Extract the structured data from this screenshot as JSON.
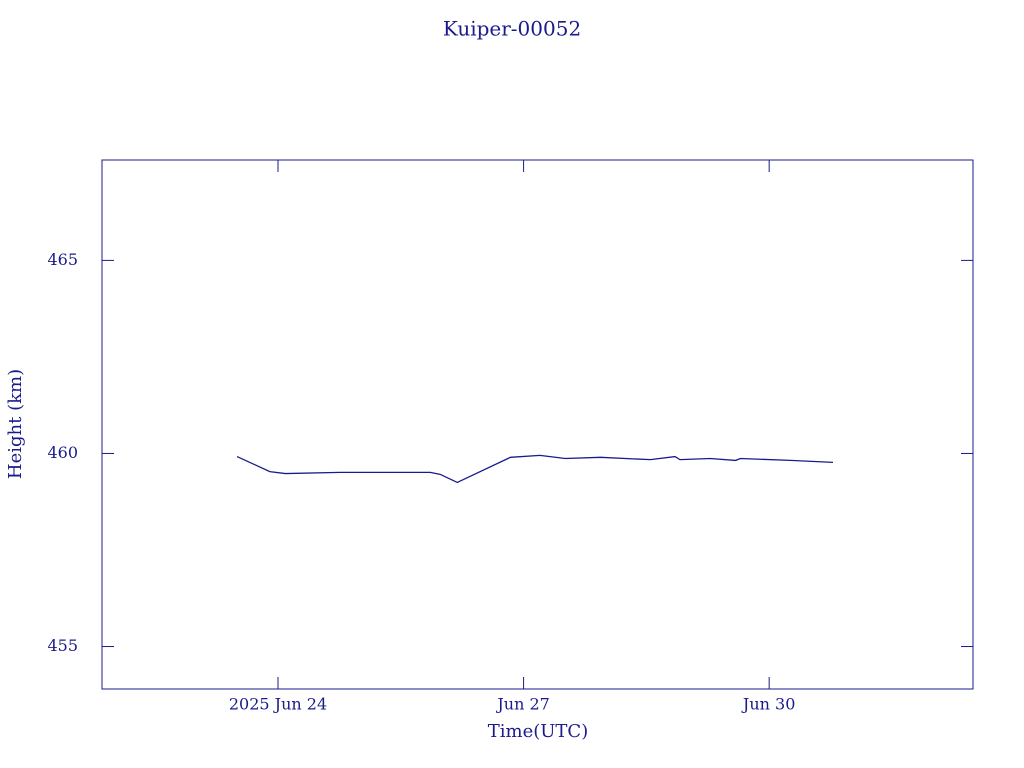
{
  "chart_data": {
    "type": "line",
    "title": "Kuiper-00052",
    "x_label": "Time(UTC)",
    "y_label": "Height (km)",
    "x": [
      23.5,
      23.9,
      24.09,
      24.76,
      25.37,
      25.86,
      25.98,
      26.19,
      26.84,
      27.2,
      27.51,
      27.94,
      28.55,
      28.85,
      28.91,
      29.28,
      29.59,
      29.65,
      30.26,
      30.78
    ],
    "series": [
      {
        "name": "Height",
        "color": "#1a1a8c",
        "values": [
          459.92,
          459.53,
          459.48,
          459.51,
          459.51,
          459.51,
          459.46,
          459.25,
          459.9,
          459.95,
          459.87,
          459.9,
          459.84,
          459.92,
          459.84,
          459.87,
          459.82,
          459.87,
          459.82,
          459.77
        ]
      }
    ],
    "xlim": [
      21.85,
      32.49
    ],
    "xticks": [
      {
        "value": 24,
        "label": "2025 Jun 24"
      },
      {
        "value": 27,
        "label": "Jun 27"
      },
      {
        "value": 30,
        "label": "Jun 30"
      }
    ],
    "ylim": [
      453.9,
      467.6
    ],
    "yticks": [
      455,
      460,
      465
    ],
    "grid": false
  }
}
